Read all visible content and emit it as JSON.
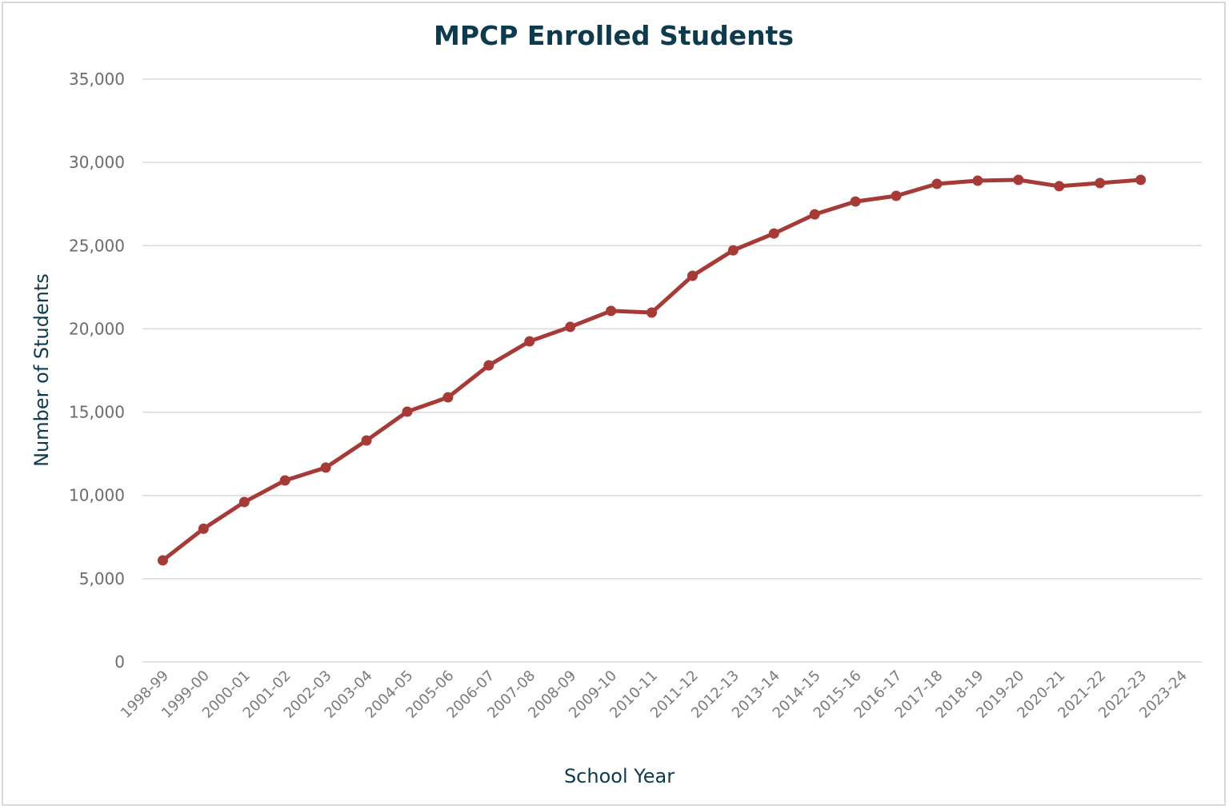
{
  "chart_data": {
    "type": "line",
    "title": "MPCP Enrolled Students",
    "xlabel": "School Year",
    "ylabel": "Number of Students",
    "ylim": [
      0,
      35000
    ],
    "yticks": [
      "0",
      "5,000",
      "10,000",
      "15,000",
      "20,000",
      "25,000",
      "30,000",
      "35,000"
    ],
    "grid": true,
    "categories": [
      "1998-99",
      "1999-00",
      "2000-01",
      "2001-02",
      "2002-03",
      "2003-04",
      "2004-05",
      "2005-06",
      "2006-07",
      "2007-08",
      "2008-09",
      "2009-10",
      "2010-11",
      "2011-12",
      "2012-13",
      "2013-14",
      "2014-15",
      "2015-16",
      "2016-17",
      "2017-18",
      "2018-19",
      "2019-20",
      "2020-21",
      "2021-22",
      "2022-23",
      "2023-24"
    ],
    "series": [
      {
        "color": "#a63a37",
        "values": [
          6100,
          8000,
          9600,
          10900,
          11670,
          13300,
          15030,
          15890,
          17810,
          19250,
          20120,
          21080,
          20980,
          23190,
          24720,
          25730,
          26880,
          27650,
          27990,
          28710,
          28900,
          28950,
          28570,
          28760,
          28950,
          null
        ]
      }
    ]
  }
}
